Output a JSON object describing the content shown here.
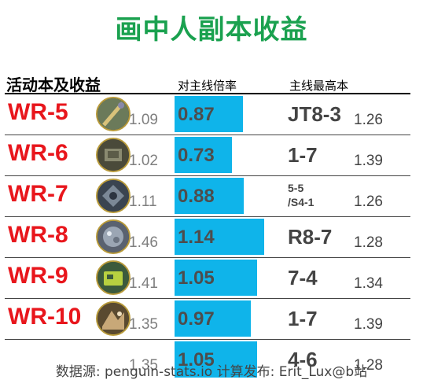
{
  "title": "画中人副本收益",
  "headers": {
    "activity": "活动本及收益",
    "ratio": "对主线倍率",
    "best": "主线最高本"
  },
  "rows": [
    {
      "stage": "WR-5",
      "icon": "stage-icon-1",
      "act_ratio": "1.09",
      "ratio": 0.87,
      "ratio_label": "0.87",
      "best": "JT8-3",
      "best_ratio": "1.26"
    },
    {
      "stage": "WR-6",
      "icon": "stage-icon-2",
      "act_ratio": "1.02",
      "ratio": 0.73,
      "ratio_label": "0.73",
      "best": "1-7",
      "best_ratio": "1.39"
    },
    {
      "stage": "WR-7",
      "icon": "stage-icon-3",
      "act_ratio": "1.11",
      "ratio": 0.88,
      "ratio_label": "0.88",
      "best": "5-5\n/S4-1",
      "best_ratio": "1.26"
    },
    {
      "stage": "WR-8",
      "icon": "stage-icon-4",
      "act_ratio": "1.46",
      "ratio": 1.14,
      "ratio_label": "1.14",
      "best": "R8-7",
      "best_ratio": "1.28"
    },
    {
      "stage": "WR-9",
      "icon": "stage-icon-5",
      "act_ratio": "1.41",
      "ratio": 1.05,
      "ratio_label": "1.05",
      "best": "7-4",
      "best_ratio": "1.34"
    },
    {
      "stage": "WR-10",
      "icon": "stage-icon-6",
      "act_ratio": "1.35",
      "ratio": 0.97,
      "ratio_label": "0.97",
      "best": "1-7",
      "best_ratio": "1.39"
    },
    {
      "stage": "",
      "icon": "",
      "act_ratio": "1.35",
      "ratio": 1.05,
      "ratio_label": "1.05",
      "best": "4-6",
      "best_ratio": "1.28"
    }
  ],
  "footer": "数据源: penguin-stats.io   计算发布: Erit_Lux@b站",
  "colors": {
    "title": "#1aa14f",
    "stage": "#e8161c",
    "bar": "#0fb4ea"
  }
}
